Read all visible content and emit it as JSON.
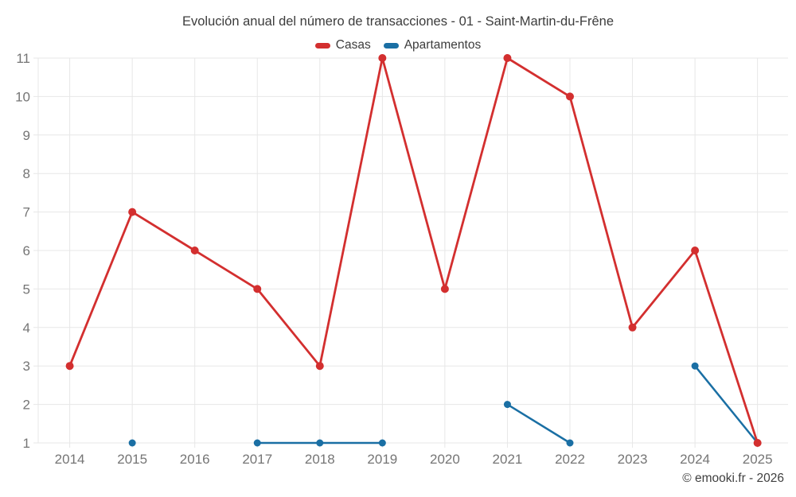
{
  "header": {
    "title": "Evolución anual del número de transacciones - 01 - Saint-Martin-du-Frêne"
  },
  "legend": {
    "items": [
      {
        "label": "Casas",
        "color": "#d32f2f"
      },
      {
        "label": "Apartamentos",
        "color": "#1a6fa4"
      }
    ]
  },
  "footer": {
    "copyright": "© emooki.fr - 2026"
  },
  "chart_data": {
    "type": "line",
    "title": "Evolución anual del número de transacciones - 01 - Saint-Martin-du-Frêne",
    "categories": [
      "2014",
      "2015",
      "2016",
      "2017",
      "2018",
      "2019",
      "2020",
      "2021",
      "2022",
      "2023",
      "2024",
      "2025"
    ],
    "series": [
      {
        "name": "Casas",
        "color": "#d32f2f",
        "marker_radius": 5,
        "line_width": 2.8,
        "values": [
          3,
          7,
          6,
          5,
          3,
          11,
          5,
          11,
          10,
          4,
          6,
          1
        ]
      },
      {
        "name": "Apartamentos",
        "color": "#1a6fa4",
        "marker_radius": 4.5,
        "line_width": 2.5,
        "values": [
          null,
          1,
          null,
          1,
          1,
          1,
          null,
          2,
          1,
          null,
          3,
          1
        ]
      }
    ],
    "xlabel": "",
    "ylabel": "",
    "ylim": [
      1,
      11
    ],
    "yticks": [
      1,
      2,
      3,
      4,
      5,
      6,
      7,
      8,
      9,
      10,
      11
    ],
    "grid": true,
    "grid_color": "#e7e7e7",
    "legend_position": "top",
    "background": "#ffffff"
  }
}
